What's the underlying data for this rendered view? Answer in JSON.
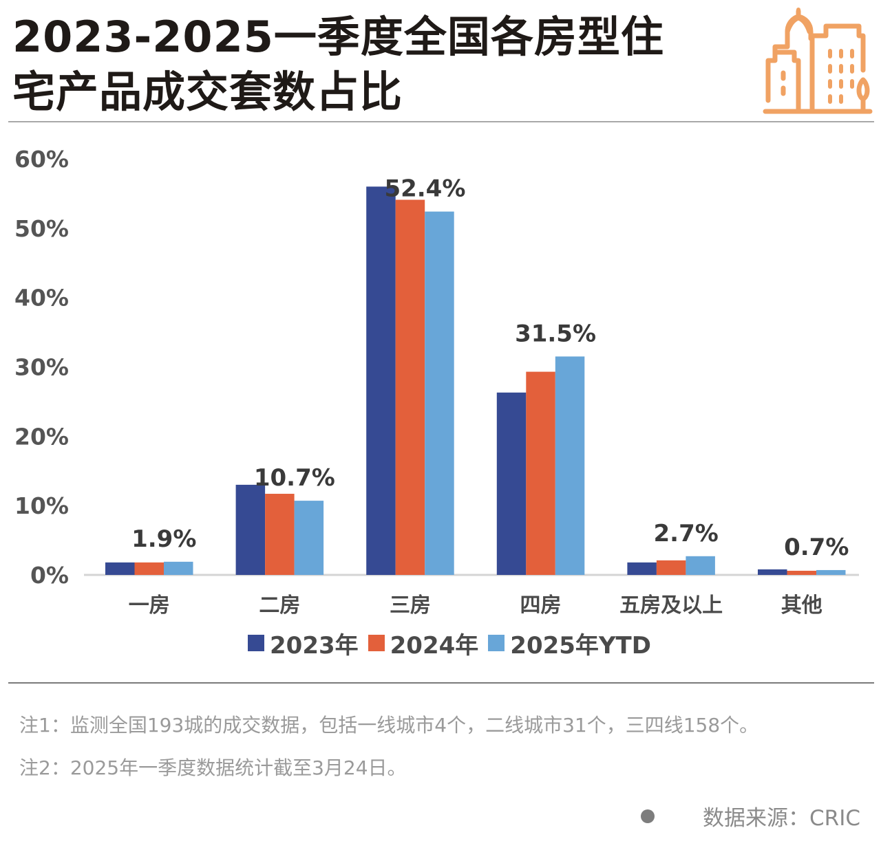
{
  "header": {
    "title_line1": "2023-2025一季度全国各房型住",
    "title_line2": "宅产品成交套数占比",
    "logo_icon": "city-buildings-icon",
    "accent_color": "#F0A263"
  },
  "chart_data": {
    "type": "bar",
    "title": "2023-2025一季度全国各房型住宅产品成交套数占比",
    "xlabel": "",
    "ylabel": "",
    "categories": [
      "一房",
      "二房",
      "三房",
      "四房",
      "五房及以上",
      "其他"
    ],
    "series": [
      {
        "name": "2023年",
        "color": "#364A93",
        "values": [
          1.8,
          13.0,
          56.0,
          26.3,
          1.8,
          0.8
        ]
      },
      {
        "name": "2024年",
        "color": "#E3603B",
        "values": [
          1.8,
          11.7,
          54.1,
          29.3,
          2.1,
          0.6
        ]
      },
      {
        "name": "2025年YTD",
        "color": "#68A6D8",
        "values": [
          1.9,
          10.7,
          52.4,
          31.5,
          2.7,
          0.7
        ]
      }
    ],
    "data_labels": [
      {
        "category": "一房",
        "series": "2025年YTD",
        "text": "1.9%"
      },
      {
        "category": "二房",
        "series": "2025年YTD",
        "text": "10.7%"
      },
      {
        "category": "三房",
        "series": "2025年YTD",
        "text": "52.4%"
      },
      {
        "category": "四房",
        "series": "2025年YTD",
        "text": "31.5%"
      },
      {
        "category": "五房及以上",
        "series": "2025年YTD",
        "text": "2.7%"
      },
      {
        "category": "其他",
        "series": "2025年YTD",
        "text": "0.7%"
      }
    ],
    "ylim": [
      0,
      60
    ],
    "yticks": [
      "0%",
      "10%",
      "20%",
      "30%",
      "40%",
      "50%",
      "60%"
    ],
    "unit": "%",
    "grid": false,
    "legend_position": "bottom"
  },
  "notes": {
    "note1": "注1：监测全国193城的成交数据，包括一线城市4个，二线城市31个，三四线158个。",
    "note2": "注2：2025年一季度数据统计截至3月24日。"
  },
  "source": {
    "text": "数据来源：CRIC"
  }
}
